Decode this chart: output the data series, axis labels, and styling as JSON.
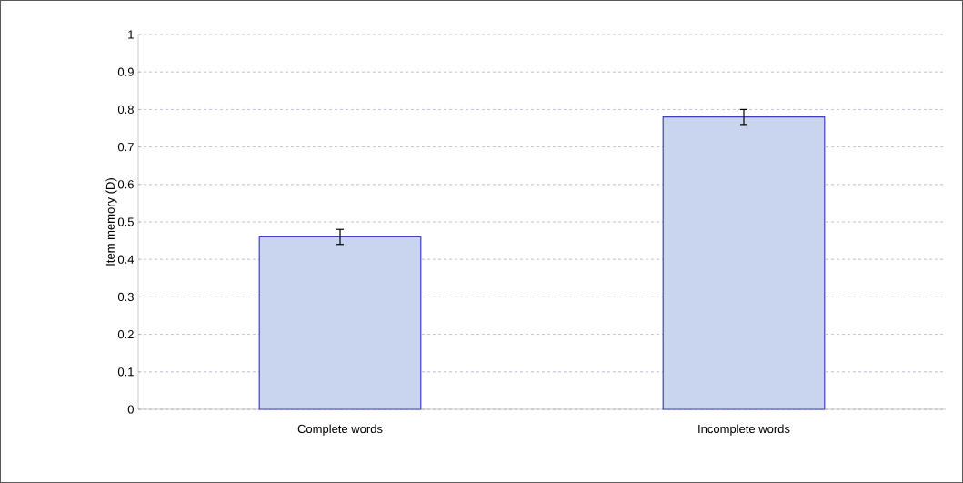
{
  "chart_data": {
    "type": "bar",
    "ylabel": "Item memory (D)",
    "categories": [
      "Complete words",
      "Incomplete words"
    ],
    "values": [
      0.46,
      0.78
    ],
    "errors": [
      0.02,
      0.02
    ],
    "color": "#c9d5ee",
    "ylim": [
      0,
      1
    ],
    "yticks": [
      0,
      0.1,
      0.2,
      0.3,
      0.4,
      0.5,
      0.6,
      0.7,
      0.8,
      0.9,
      1
    ],
    "grid": "y",
    "line_style": "dashed"
  }
}
